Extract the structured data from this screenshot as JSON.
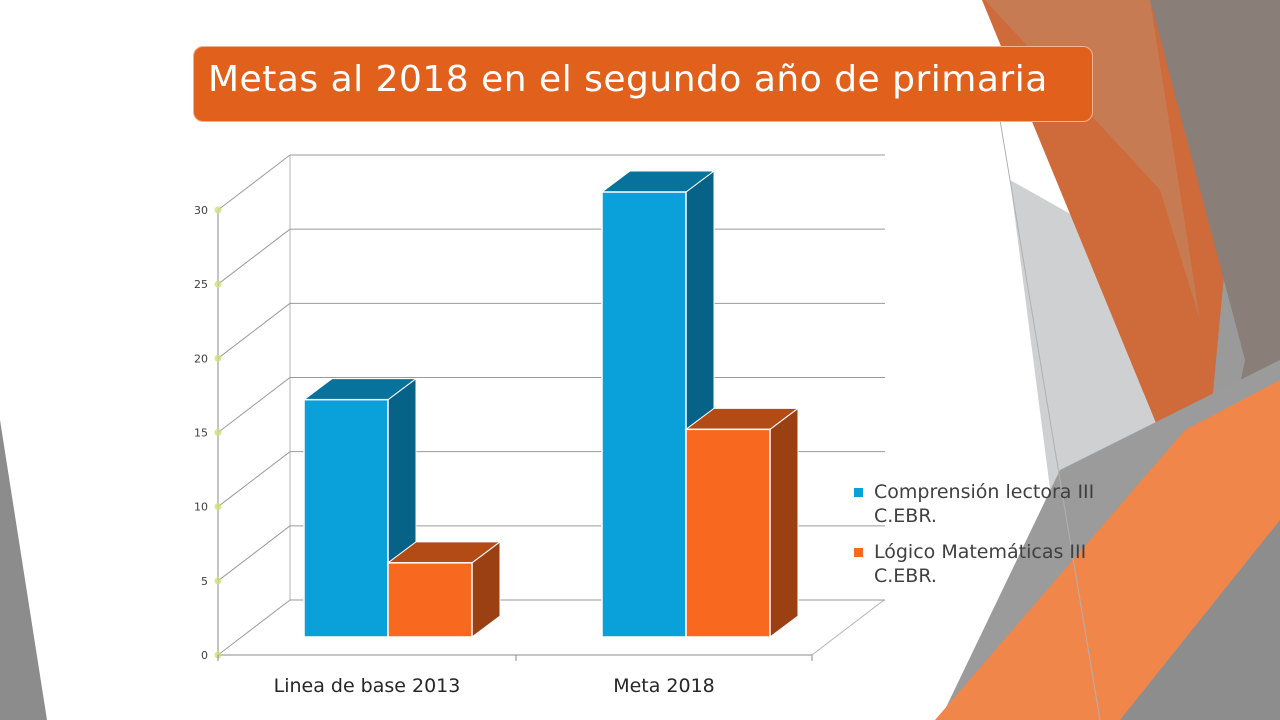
{
  "slide": {
    "title": "Metas al 2018 en el segundo año de primaria",
    "accent_color": "#e0601c"
  },
  "chart_data": {
    "type": "bar",
    "categories": [
      "Linea de base 2013",
      "Meta 2018"
    ],
    "series": [
      {
        "name": "Comprensión lectora III C.EBR.",
        "values": [
          16,
          30
        ],
        "color": "#0aa0da"
      },
      {
        "name": "Lógico Matemáticas  III C.EBR.",
        "values": [
          5,
          14
        ],
        "color": "#f8681e"
      }
    ],
    "y_ticks": [
      "0",
      "5",
      "10",
      "15",
      "20",
      "25",
      "30"
    ],
    "ylim": [
      0,
      30
    ],
    "grid": true,
    "legend_position": "right",
    "style": "3d-column"
  }
}
